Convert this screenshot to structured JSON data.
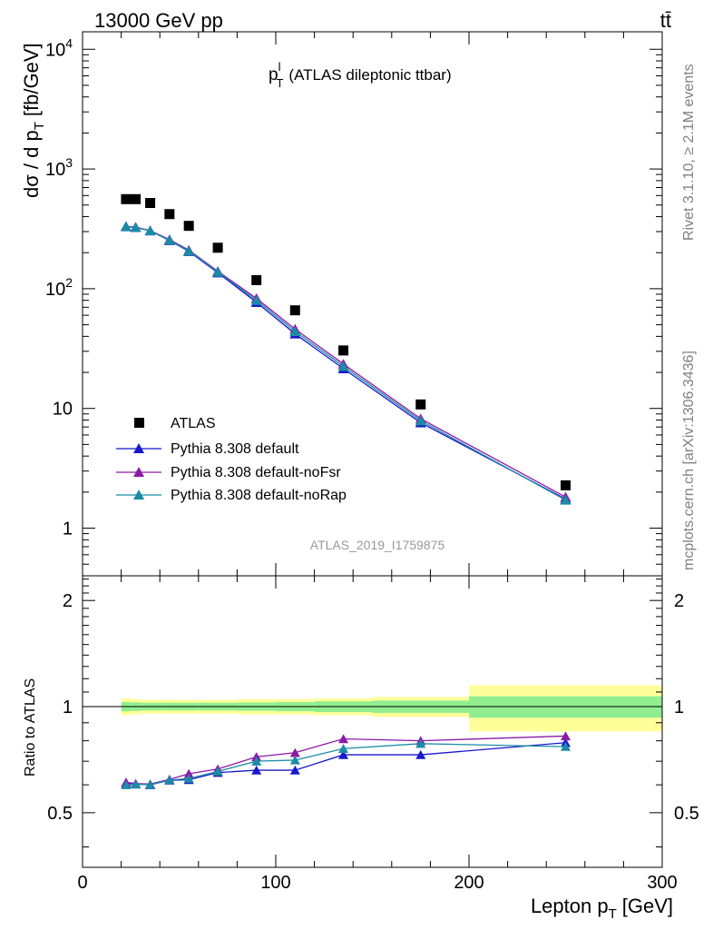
{
  "header": {
    "energy": "13000 GeV pp",
    "process": "tt̄"
  },
  "side": {
    "rivet": "Rivet 3.1.10, ≥ 2.1M events",
    "mcplots": "mcplots.cern.ch [arXiv:1306.3436]"
  },
  "chart_data": [
    {
      "type": "scatter",
      "title_main": "p",
      "title_sup": "l",
      "title_sub": "T",
      "title_rest": "(ATLAS dileptonic ttbar)",
      "watermark": "ATLAS_2019_I1759875",
      "ylabel_main": "dσ / d p",
      "ylabel_sub": "T",
      "ylabel_unit": "[fb/GeV]",
      "yscale": "log",
      "ylim": [
        0.4,
        14000
      ],
      "xlim": [
        0,
        300
      ],
      "y_ticks": [
        {
          "v": 1,
          "text": "1"
        },
        {
          "v": 10,
          "text": "10"
        },
        {
          "v": 100,
          "text": "10",
          "sup": "2"
        },
        {
          "v": 1000,
          "text": "10",
          "sup": "3"
        },
        {
          "v": 10000,
          "text": "10",
          "sup": "4"
        }
      ],
      "legend": {
        "placement": "left-center",
        "entries": [
          "ATLAS",
          "Pythia 8.308 default",
          "Pythia 8.308 default-noFsr",
          "Pythia 8.308 default-noRap"
        ]
      },
      "x": [
        22.5,
        27.5,
        35,
        45,
        55,
        70,
        90,
        110,
        135,
        175,
        250
      ],
      "series": [
        {
          "name": "ATLAS",
          "color": "#000000",
          "marker": "square",
          "values": [
            560,
            560,
            520,
            420,
            335,
            220,
            118,
            66,
            30.5,
            10.8,
            2.28
          ]
        },
        {
          "name": "Pythia 8.308 default",
          "color": "#1818cc",
          "marker": "triangle",
          "values": [
            330,
            325,
            305,
            253,
            205,
            136,
            77,
            42,
            21.5,
            7.6,
            1.75
          ]
        },
        {
          "name": "Pythia 8.308 default-noFsr",
          "color": "#8c1aa6",
          "marker": "triangle",
          "values": [
            332,
            327,
            306,
            258,
            210,
            140,
            83,
            46,
            23.5,
            8.2,
            1.82
          ]
        },
        {
          "name": "Pythia 8.308 default-noRap",
          "color": "#1a8ca6",
          "marker": "triangle",
          "values": [
            331,
            326,
            305,
            255,
            207,
            138,
            80,
            44,
            22.5,
            7.9,
            1.72
          ]
        }
      ]
    },
    {
      "type": "line",
      "ylabel": "Ratio to ATLAS",
      "xlabel_main": "Lepton p",
      "xlabel_sub": "T",
      "xlabel_unit": "[GeV]",
      "xlim": [
        0,
        300
      ],
      "ylim": [
        0.35,
        2.35
      ],
      "yscale": "log",
      "x_ticks": [
        {
          "v": 0,
          "text": "0"
        },
        {
          "v": 100,
          "text": "100"
        },
        {
          "v": 200,
          "text": "200"
        },
        {
          "v": 300,
          "text": "300"
        }
      ],
      "y_ticks": [
        {
          "v": 0.5,
          "text": "0.5"
        },
        {
          "v": 1,
          "text": "1"
        },
        {
          "v": 2,
          "text": "2"
        }
      ],
      "bands": {
        "edges": [
          20,
          25,
          30,
          40,
          50,
          60,
          80,
          100,
          120,
          150,
          200,
          300
        ],
        "outer": [
          0.055,
          0.05,
          0.045,
          0.045,
          0.045,
          0.045,
          0.05,
          0.05,
          0.055,
          0.065,
          0.15
        ],
        "inner": [
          0.03,
          0.028,
          0.025,
          0.025,
          0.025,
          0.025,
          0.027,
          0.03,
          0.035,
          0.04,
          0.07
        ],
        "outer_color": "#ffff99",
        "inner_color": "#90ee90"
      },
      "x": [
        22.5,
        27.5,
        35,
        45,
        55,
        70,
        90,
        110,
        135,
        175,
        250
      ],
      "series": [
        {
          "name": "Pythia 8.308 default",
          "color": "#1818cc",
          "values": [
            0.605,
            0.603,
            0.6,
            0.618,
            0.62,
            0.65,
            0.66,
            0.66,
            0.73,
            0.73,
            0.79
          ]
        },
        {
          "name": "Pythia 8.308 default-noFsr",
          "color": "#8c1aa6",
          "values": [
            0.61,
            0.605,
            0.603,
            0.622,
            0.645,
            0.665,
            0.72,
            0.74,
            0.81,
            0.8,
            0.825
          ]
        },
        {
          "name": "Pythia 8.308 default-noRap",
          "color": "#1a8ca6",
          "values": [
            0.6,
            0.602,
            0.601,
            0.619,
            0.625,
            0.655,
            0.7,
            0.705,
            0.76,
            0.785,
            0.77
          ]
        }
      ]
    }
  ]
}
